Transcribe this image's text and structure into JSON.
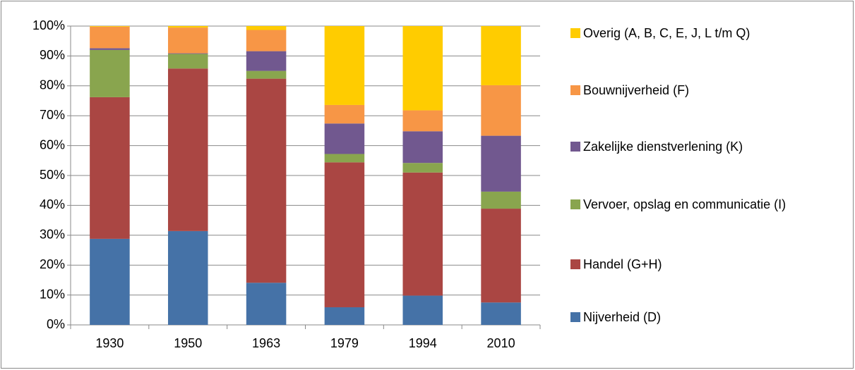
{
  "chart_data": {
    "type": "stacked_bar",
    "categories": [
      "1930",
      "1950",
      "1963",
      "1979",
      "1994",
      "2010"
    ],
    "series": [
      {
        "name": "Nijverheid (D)",
        "color": "#4572a7",
        "values": [
          28.8,
          31.4,
          14.1,
          5.9,
          9.8,
          7.5
        ]
      },
      {
        "name": "Handel (G+H)",
        "color": "#aa4643",
        "values": [
          47.4,
          54.4,
          68.3,
          48.5,
          41.2,
          31.4
        ]
      },
      {
        "name": "Vervoer, opslag en communicatie (I)",
        "color": "#89a54e",
        "values": [
          15.8,
          4.9,
          2.6,
          2.8,
          3.2,
          5.7
        ]
      },
      {
        "name": "Zakelijke dienstverlening (K)",
        "color": "#71588f",
        "values": [
          0.6,
          0.2,
          6.6,
          10.2,
          10.6,
          18.7
        ]
      },
      {
        "name": "Bouwnijverheid (F)",
        "color": "#f79646",
        "values": [
          7.2,
          8.6,
          7.1,
          6.2,
          7.0,
          16.9
        ]
      },
      {
        "name": "Overig (A, B, C, E, J, L t/m Q)",
        "color": "#ffcc00",
        "values": [
          0.2,
          0.5,
          1.3,
          26.4,
          28.2,
          19.8
        ]
      }
    ],
    "ylim": [
      0,
      100
    ],
    "yticks": [
      {
        "value": 0,
        "label": "0%"
      },
      {
        "value": 10,
        "label": "10%"
      },
      {
        "value": 20,
        "label": "20%"
      },
      {
        "value": 30,
        "label": "30%"
      },
      {
        "value": 40,
        "label": "40%"
      },
      {
        "value": 50,
        "label": "50%"
      },
      {
        "value": 60,
        "label": "60%"
      },
      {
        "value": 70,
        "label": "70%"
      },
      {
        "value": 80,
        "label": "80%"
      },
      {
        "value": 90,
        "label": "90%"
      },
      {
        "value": 100,
        "label": "100%"
      }
    ],
    "grid": true,
    "legend": "right"
  }
}
